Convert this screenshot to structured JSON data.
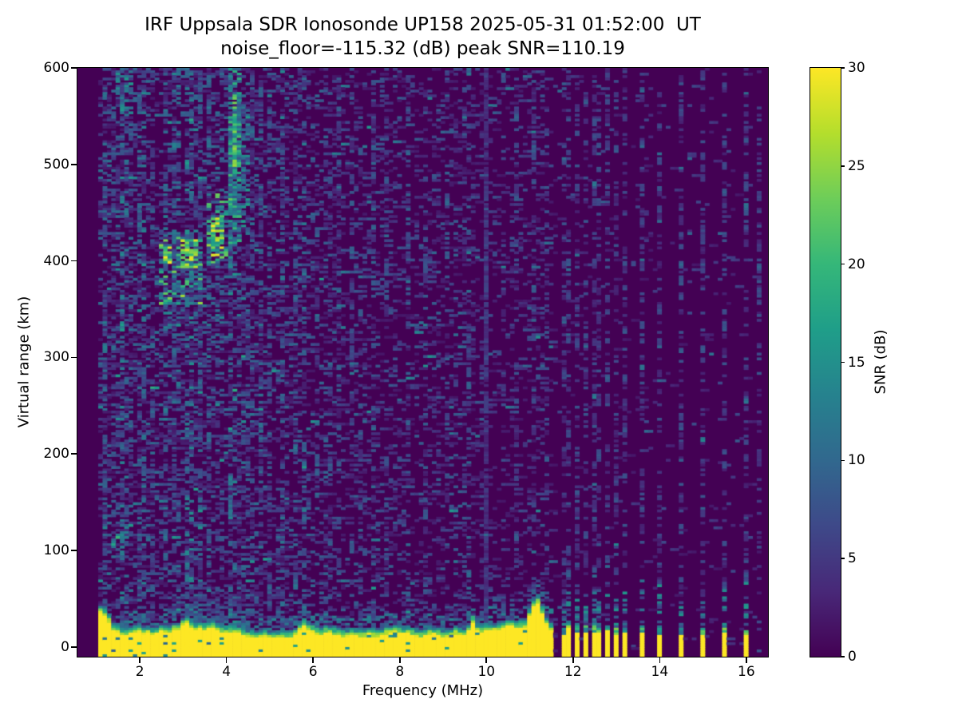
{
  "figure": {
    "title_line1": "IRF Uppsala SDR Ionosonde UP158 2025-05-31 01:52:00  UT",
    "title_line2": "noise_floor=-115.32 (dB) peak SNR=110.19"
  },
  "chart_data": {
    "type": "heatmap",
    "title": "IRF Uppsala SDR Ionosonde UP158 2025-05-31 01:52:00  UT",
    "subtitle": "noise_floor=-115.32 (dB) peak SNR=110.19",
    "xlabel": "Frequency (MHz)",
    "ylabel": "Virtual range (km)",
    "xlim": [
      0.56,
      16.5
    ],
    "ylim": [
      -10,
      600
    ],
    "xticks": [
      2,
      4,
      6,
      8,
      10,
      12,
      14,
      16
    ],
    "yticks": [
      0,
      100,
      200,
      300,
      400,
      500,
      600
    ],
    "grid": false,
    "colorbar": {
      "label": "SNR (dB)",
      "min": 0,
      "max": 30,
      "ticks": [
        0,
        5,
        10,
        15,
        20,
        25,
        30
      ],
      "colormap": "viridis",
      "position": "right"
    },
    "viridis_stops": [
      "#440154",
      "#482878",
      "#3e4989",
      "#31688e",
      "#26828e",
      "#1f9e89",
      "#35b779",
      "#6dcd59",
      "#b4de2c",
      "#fde725"
    ],
    "seed": 7,
    "cell": {
      "df": 0.1,
      "dkm": 2.5
    },
    "data_extent": {
      "f_min": 1.04,
      "f_max": 16.3
    },
    "background_noise": {
      "regions": [
        {
          "f_max": 4.9,
          "p": 0.34,
          "amp": 9
        },
        {
          "f_max": 6.3,
          "p": 0.28,
          "amp": 8
        },
        {
          "f_max": 9.5,
          "p": 0.22,
          "amp": 7
        },
        {
          "f_max": 11.55,
          "p": 0.16,
          "amp": 6
        },
        {
          "f_max": 16.3,
          "p": 0.03,
          "amp": 5
        }
      ]
    },
    "rfi_lines": [
      {
        "f": 1.18,
        "d": 0.3,
        "db": 9
      },
      {
        "f": 1.34,
        "d": 0.22,
        "db": 7
      },
      {
        "f": 1.55,
        "d": 0.36,
        "db": 12
      },
      {
        "f": 1.73,
        "d": 0.3,
        "db": 10
      },
      {
        "f": 1.95,
        "d": 0.28,
        "db": 9
      },
      {
        "f": 2.12,
        "d": 0.32,
        "db": 11
      },
      {
        "f": 2.32,
        "d": 0.22,
        "db": 8
      },
      {
        "f": 2.55,
        "d": 0.3,
        "db": 10
      },
      {
        "f": 2.74,
        "d": 0.22,
        "db": 8
      },
      {
        "f": 2.92,
        "d": 0.3,
        "db": 10
      },
      {
        "f": 3.05,
        "d": 0.25,
        "db": 12
      },
      {
        "f": 3.16,
        "d": 0.36,
        "db": 13
      },
      {
        "f": 3.38,
        "d": 0.25,
        "db": 9
      },
      {
        "f": 3.62,
        "d": 0.3,
        "db": 10
      },
      {
        "f": 3.82,
        "d": 0.22,
        "db": 8
      },
      {
        "f": 4.12,
        "d": 0.3,
        "db": 12
      },
      {
        "f": 4.45,
        "d": 0.25,
        "db": 9
      },
      {
        "f": 4.64,
        "d": 0.2,
        "db": 8
      },
      {
        "f": 4.8,
        "d": 0.24,
        "db": 9
      },
      {
        "f": 5.02,
        "d": 0.2,
        "db": 8
      },
      {
        "f": 5.28,
        "d": 0.26,
        "db": 9
      },
      {
        "f": 5.55,
        "d": 0.2,
        "db": 8
      },
      {
        "f": 5.78,
        "d": 0.28,
        "db": 10
      },
      {
        "f": 6.08,
        "d": 0.2,
        "db": 8
      },
      {
        "f": 6.35,
        "d": 0.18,
        "db": 7
      },
      {
        "f": 6.62,
        "d": 0.18,
        "db": 7
      },
      {
        "f": 6.88,
        "d": 0.16,
        "db": 7
      },
      {
        "f": 7.12,
        "d": 0.16,
        "db": 7
      },
      {
        "f": 7.42,
        "d": 0.18,
        "db": 8
      },
      {
        "f": 7.68,
        "d": 0.14,
        "db": 6
      },
      {
        "f": 8.2,
        "d": 0.2,
        "db": 7
      },
      {
        "f": 8.55,
        "d": 0.14,
        "db": 6
      },
      {
        "f": 9.1,
        "d": 0.16,
        "db": 7
      },
      {
        "f": 9.62,
        "d": 0.22,
        "db": 9
      },
      {
        "f": 9.95,
        "d": 0.85,
        "db": 4
      },
      {
        "f": 10.35,
        "d": 0.16,
        "db": 6
      },
      {
        "f": 10.68,
        "d": 0.14,
        "db": 6
      },
      {
        "f": 11.08,
        "d": 0.16,
        "db": 7
      },
      {
        "f": 11.35,
        "d": 0.13,
        "db": 6
      },
      {
        "f": 16.25,
        "d": 0.2,
        "db": 6
      }
    ],
    "echo_clusters": [
      {
        "f0": 2.4,
        "f1": 3.42,
        "km0": 356,
        "km1": 432,
        "d": 0.4,
        "lo": 7,
        "hi": 26,
        "pw": 1.8
      },
      {
        "f0": 2.5,
        "f1": 2.7,
        "km0": 397,
        "km1": 415,
        "d": 0.75,
        "lo": 17,
        "hi": 30,
        "pw": 0.9
      },
      {
        "f0": 2.93,
        "f1": 3.3,
        "km0": 392,
        "km1": 422,
        "d": 0.75,
        "lo": 17,
        "hi": 30,
        "pw": 0.9
      },
      {
        "f0": 3.5,
        "f1": 4.18,
        "km0": 397,
        "km1": 470,
        "d": 0.45,
        "lo": 8,
        "hi": 26,
        "pw": 1.6
      },
      {
        "f0": 3.64,
        "f1": 3.96,
        "km0": 404,
        "km1": 448,
        "d": 0.7,
        "lo": 15,
        "hi": 30,
        "pw": 0.9
      },
      {
        "f0": 2.55,
        "f1": 4.5,
        "km0": 330,
        "km1": 372,
        "d": 0.2,
        "lo": 5,
        "hi": 15,
        "pw": 1.7
      },
      {
        "f0": 4.08,
        "f1": 4.3,
        "km0": 418,
        "km1": 600,
        "d": 0.6,
        "lo": 8,
        "hi": 21,
        "pw": 1.4
      },
      {
        "f0": 4.12,
        "f1": 4.28,
        "km0": 498,
        "km1": 572,
        "d": 0.75,
        "lo": 14,
        "hi": 26,
        "pw": 1.0
      },
      {
        "f0": 4.36,
        "f1": 4.54,
        "km0": 428,
        "km1": 562,
        "d": 0.42,
        "lo": 7,
        "hi": 17,
        "pw": 1.4
      },
      {
        "f0": 1.48,
        "f1": 1.82,
        "km0": 552,
        "km1": 600,
        "d": 0.3,
        "lo": 7,
        "hi": 17,
        "pw": 1.4
      }
    ],
    "sporadic_e": {
      "f0": 1.3,
      "f1": 1.8,
      "km0": 100,
      "slope": 52,
      "hw": 8,
      "d": 0.5,
      "lo": 8,
      "hi": 20
    },
    "ground_band": {
      "f_start": 1.04,
      "f_end": 11.52,
      "top_base": 24,
      "bumps": [
        {
          "f": 11.15,
          "a": 30,
          "w": 0.18
        },
        {
          "f": 9.67,
          "a": 13,
          "w": 0.08
        },
        {
          "f": 5.8,
          "a": 8,
          "w": 0.12
        },
        {
          "f": 3.05,
          "a": 7,
          "w": 0.1
        },
        {
          "f": 1.12,
          "a": 14,
          "w": 0.22
        }
      ]
    },
    "discrete_bars": {
      "freqs": [
        11.76,
        11.91,
        12.09,
        12.27,
        12.46,
        12.62,
        12.81,
        12.99,
        13.19,
        13.6,
        14.01,
        14.49,
        14.98,
        15.48,
        15.97
      ],
      "width_mhz": 0.1
    },
    "inband_dashes": [
      {
        "f0": 7.25,
        "f1": 7.95,
        "km": 12,
        "db": 13
      }
    ]
  }
}
